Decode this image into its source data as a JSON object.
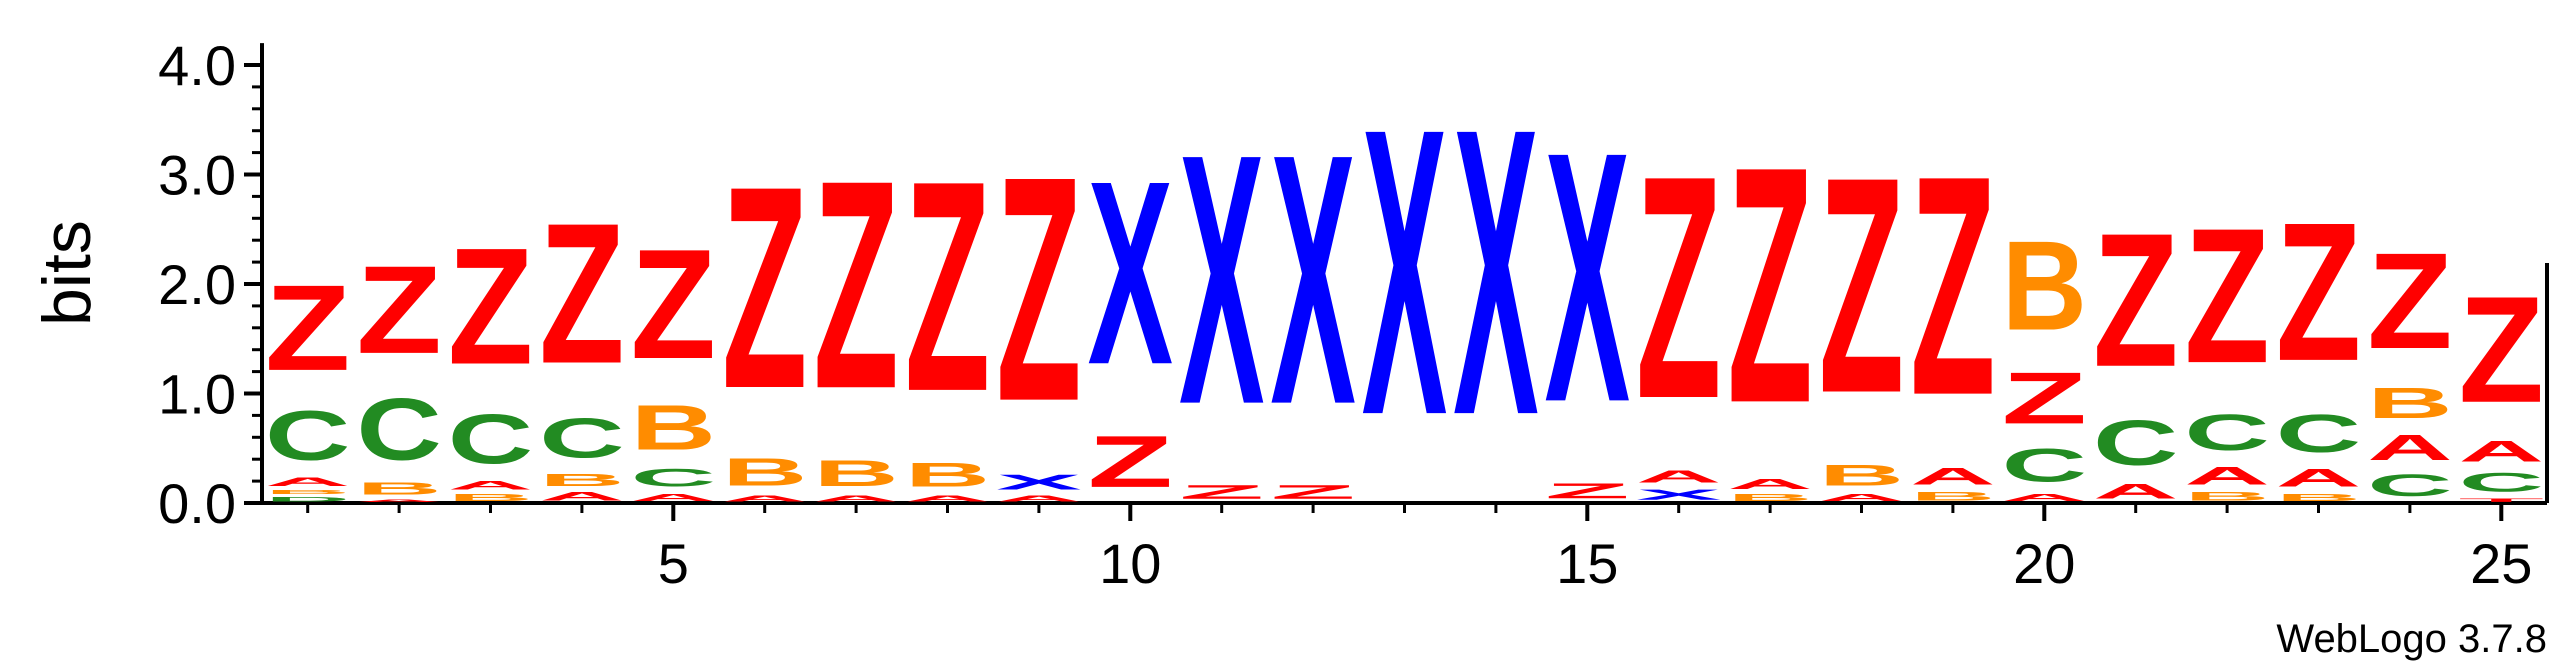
{
  "chart_data": {
    "type": "sequence-logo",
    "ylabel": "bits",
    "ylim": [
      0,
      4.2
    ],
    "yticks": [
      "0.0",
      "1.0",
      "2.0",
      "3.0",
      "4.0"
    ],
    "xticks": [
      5,
      10,
      15,
      20,
      25
    ],
    "positions": [
      {
        "pos": 1,
        "stack": [
          {
            "letter": "D",
            "bits": 0.07
          },
          {
            "letter": "B",
            "bits": 0.06
          },
          {
            "letter": "A",
            "bits": 0.12
          },
          {
            "letter": "C",
            "bits": 0.72
          },
          {
            "letter": "Z",
            "bits": 1.25
          }
        ]
      },
      {
        "pos": 2,
        "stack": [
          {
            "letter": "A",
            "bits": 0.04
          },
          {
            "letter": "B",
            "bits": 0.18
          },
          {
            "letter": "C",
            "bits": 0.9
          },
          {
            "letter": "Z",
            "bits": 1.28
          }
        ]
      },
      {
        "pos": 3,
        "stack": [
          {
            "letter": "B",
            "bits": 0.1
          },
          {
            "letter": "A",
            "bits": 0.12
          },
          {
            "letter": "C",
            "bits": 0.72
          },
          {
            "letter": "Z",
            "bits": 1.7
          }
        ]
      },
      {
        "pos": 4,
        "stack": [
          {
            "letter": "A",
            "bits": 0.12
          },
          {
            "letter": "B",
            "bits": 0.18
          },
          {
            "letter": "C",
            "bits": 0.58
          },
          {
            "letter": "Z",
            "bits": 2.05
          }
        ]
      },
      {
        "pos": 5,
        "stack": [
          {
            "letter": "A",
            "bits": 0.1
          },
          {
            "letter": "C",
            "bits": 0.26
          },
          {
            "letter": "B",
            "bits": 0.65
          },
          {
            "letter": "Z",
            "bits": 1.6
          }
        ]
      },
      {
        "pos": 6,
        "stack": [
          {
            "letter": "A",
            "bits": 0.08
          },
          {
            "letter": "B",
            "bits": 0.4
          },
          {
            "letter": "Z",
            "bits": 2.95
          }
        ]
      },
      {
        "pos": 7,
        "stack": [
          {
            "letter": "A",
            "bits": 0.08
          },
          {
            "letter": "B",
            "bits": 0.38
          },
          {
            "letter": "Z",
            "bits": 3.04
          }
        ]
      },
      {
        "pos": 8,
        "stack": [
          {
            "letter": "A",
            "bits": 0.08
          },
          {
            "letter": "B",
            "bits": 0.35
          },
          {
            "letter": "Z",
            "bits": 3.07
          }
        ]
      },
      {
        "pos": 9,
        "stack": [
          {
            "letter": "A",
            "bits": 0.08
          },
          {
            "letter": "X",
            "bits": 0.22
          },
          {
            "letter": "Z",
            "bits": 3.28
          }
        ]
      },
      {
        "pos": 10,
        "stack": [
          {
            "letter": "Z",
            "bits": 0.75
          },
          {
            "letter": "X",
            "bits": 2.68
          }
        ]
      },
      {
        "pos": 11,
        "stack": [
          {
            "letter": "Z",
            "bits": 0.2
          },
          {
            "letter": "X",
            "bits": 3.65
          }
        ]
      },
      {
        "pos": 12,
        "stack": [
          {
            "letter": "Z",
            "bits": 0.2
          },
          {
            "letter": "X",
            "bits": 3.65
          }
        ]
      },
      {
        "pos": 13,
        "stack": [
          {
            "letter": "X",
            "bits": 4.18
          }
        ]
      },
      {
        "pos": 14,
        "stack": [
          {
            "letter": "X",
            "bits": 4.18
          }
        ]
      },
      {
        "pos": 15,
        "stack": [
          {
            "letter": "Z",
            "bits": 0.22
          },
          {
            "letter": "X",
            "bits": 3.65
          }
        ]
      },
      {
        "pos": 16,
        "stack": [
          {
            "letter": "X",
            "bits": 0.15
          },
          {
            "letter": "A",
            "bits": 0.18
          },
          {
            "letter": "Z",
            "bits": 3.25
          }
        ]
      },
      {
        "pos": 17,
        "stack": [
          {
            "letter": "B",
            "bits": 0.1
          },
          {
            "letter": "A",
            "bits": 0.15
          },
          {
            "letter": "Z",
            "bits": 3.45
          }
        ]
      },
      {
        "pos": 18,
        "stack": [
          {
            "letter": "A",
            "bits": 0.1
          },
          {
            "letter": "B",
            "bits": 0.3
          },
          {
            "letter": "Z",
            "bits": 3.15
          }
        ]
      },
      {
        "pos": 19,
        "stack": [
          {
            "letter": "B",
            "bits": 0.12
          },
          {
            "letter": "A",
            "bits": 0.25
          },
          {
            "letter": "Z",
            "bits": 3.2
          }
        ]
      },
      {
        "pos": 20,
        "stack": [
          {
            "letter": "A",
            "bits": 0.1
          },
          {
            "letter": "C",
            "bits": 0.48
          },
          {
            "letter": "Z",
            "bits": 0.75
          },
          {
            "letter": "B",
            "bits": 1.3
          }
        ]
      },
      {
        "pos": 21,
        "stack": [
          {
            "letter": "A",
            "bits": 0.22
          },
          {
            "letter": "C",
            "bits": 0.65
          },
          {
            "letter": "Z",
            "bits": 1.95
          }
        ]
      },
      {
        "pos": 22,
        "stack": [
          {
            "letter": "B",
            "bits": 0.12
          },
          {
            "letter": "A",
            "bits": 0.26
          },
          {
            "letter": "C",
            "bits": 0.52
          },
          {
            "letter": "Z",
            "bits": 1.97
          }
        ]
      },
      {
        "pos": 23,
        "stack": [
          {
            "letter": "B",
            "bits": 0.1
          },
          {
            "letter": "A",
            "bits": 0.26
          },
          {
            "letter": "C",
            "bits": 0.55
          },
          {
            "letter": "Z",
            "bits": 2.02
          }
        ]
      },
      {
        "pos": 24,
        "stack": [
          {
            "letter": "C",
            "bits": 0.32
          },
          {
            "letter": "A",
            "bits": 0.37
          },
          {
            "letter": "B",
            "bits": 0.45
          },
          {
            "letter": "Z",
            "bits": 1.4
          }
        ]
      },
      {
        "pos": 25,
        "stack": [
          {
            "letter": "T",
            "bits": 0.05
          },
          {
            "letter": "C",
            "bits": 0.27
          },
          {
            "letter": "A",
            "bits": 0.3
          },
          {
            "letter": "Z",
            "bits": 1.55
          }
        ]
      }
    ],
    "colors": {
      "Z": "#ff0000",
      "A": "#ff0000",
      "X": "#0000ff",
      "C": "#228b22",
      "B": "#ff8c00",
      "D": "#228b22",
      "T": "#ff0000"
    }
  },
  "footer": "WebLogo 3.7.8"
}
